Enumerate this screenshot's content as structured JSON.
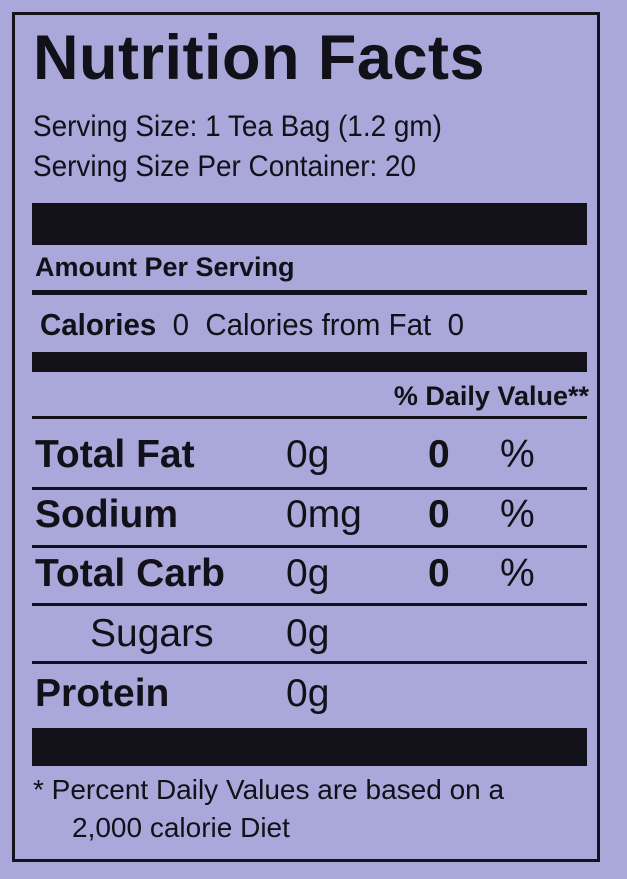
{
  "label": {
    "title": "Nutrition Facts",
    "serving_size": "Serving Size: 1 Tea Bag (1.2 gm)",
    "servings_per_container": "Serving Size Per Container: 20",
    "amount_per_serving": "Amount Per Serving",
    "calories_label": "Calories",
    "calories_value": "0",
    "calories_fat_label": "Calories from Fat",
    "calories_fat_value": "0",
    "daily_value_header": "% Daily Value**",
    "nutrients": [
      {
        "name": "Total Fat",
        "amount": "0g",
        "percent": "0",
        "symbol": "%"
      },
      {
        "name": "Sodium",
        "amount": "0mg",
        "percent": "0",
        "symbol": "%"
      },
      {
        "name": "Total Carb",
        "amount": "0g",
        "percent": "0",
        "symbol": "%"
      },
      {
        "name": "Sugars",
        "amount": "0g"
      },
      {
        "name": "Protein",
        "amount": "0g"
      }
    ],
    "footnote_line1": "* Percent Daily Values are based on a",
    "footnote_line2": "2,000 calorie Diet"
  },
  "colors": {
    "background": "#aaa8da",
    "ink": "#121018"
  }
}
